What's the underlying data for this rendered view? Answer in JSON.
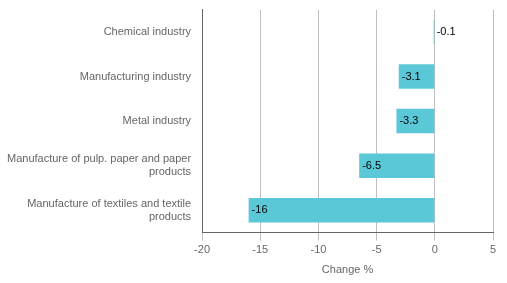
{
  "chart_data": {
    "type": "bar",
    "orientation": "horizontal",
    "categories": [
      "Manufacture of textiles and textile\nproducts",
      "Manufacture of pulp. paper and paper\nproducts",
      "Metal industry",
      "Manufacturing industry",
      "Chemical industry"
    ],
    "values": [
      -16,
      -6.5,
      -3.3,
      -3.1,
      -0.1
    ],
    "color": "#5bc8d8",
    "xlabel": "Change %",
    "xlim": [
      -20,
      5
    ],
    "xticks": [
      -20,
      -15,
      -10,
      -5,
      0,
      5
    ],
    "grid": true,
    "data_labels": true
  }
}
